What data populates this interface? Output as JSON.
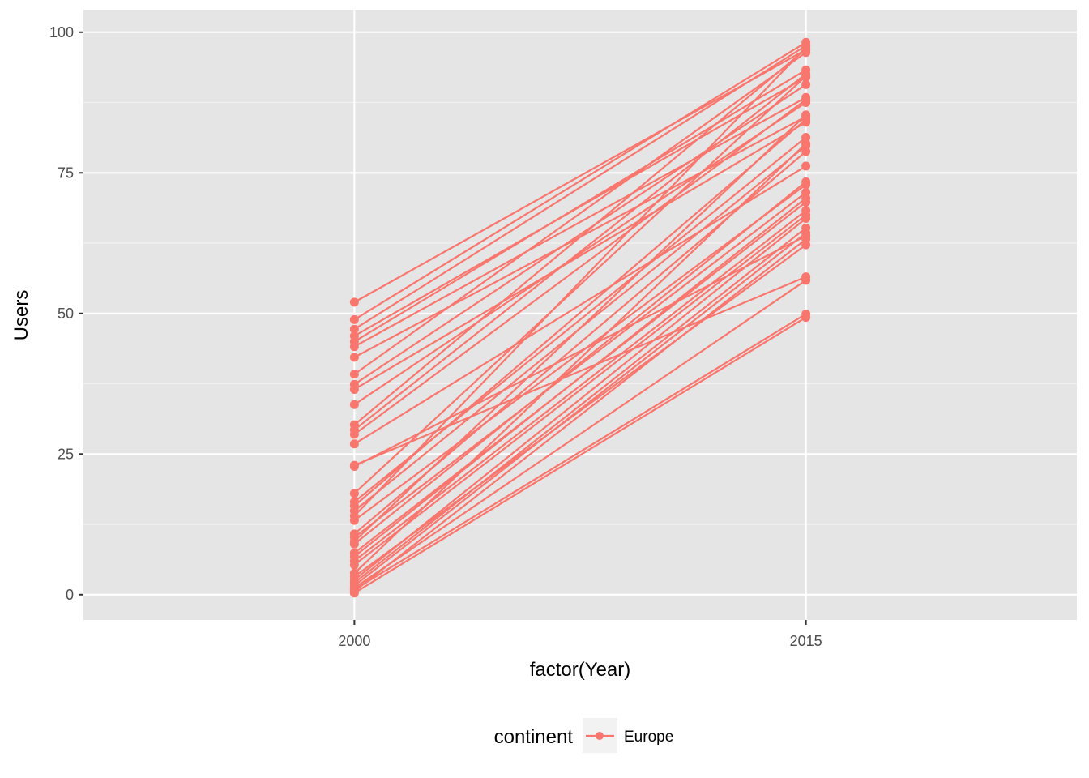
{
  "chart_data": {
    "type": "line",
    "xlabel": "factor(Year)",
    "ylabel": "Users",
    "categories": [
      "2000",
      "2015"
    ],
    "ylim": [
      -4.5,
      104
    ],
    "y_ticks": [
      0,
      25,
      50,
      75,
      100
    ],
    "grid": true,
    "legend": {
      "title": "continent",
      "position": "bottom",
      "entries": [
        {
          "label": "Europe",
          "color": "#F8766D"
        }
      ]
    },
    "series_color": "#F8766D",
    "pairs": [
      [
        52.0,
        96.9
      ],
      [
        48.9,
        98.2
      ],
      [
        47.2,
        97.6
      ],
      [
        46.0,
        92.0
      ],
      [
        45.0,
        93.3
      ],
      [
        44.1,
        88.4
      ],
      [
        42.2,
        85.0
      ],
      [
        39.2,
        96.4
      ],
      [
        37.4,
        90.7
      ],
      [
        36.5,
        84.0
      ],
      [
        33.8,
        87.5
      ],
      [
        30.2,
        97.0
      ],
      [
        29.3,
        92.6
      ],
      [
        28.5,
        88.0
      ],
      [
        26.8,
        76.2
      ],
      [
        23.0,
        56.5
      ],
      [
        22.8,
        63.8
      ],
      [
        18.0,
        92.2
      ],
      [
        16.5,
        81.3
      ],
      [
        15.8,
        84.5
      ],
      [
        14.9,
        79.8
      ],
      [
        14.0,
        97.3
      ],
      [
        13.2,
        72.9
      ],
      [
        10.8,
        78.8
      ],
      [
        10.2,
        71.5
      ],
      [
        9.5,
        85.3
      ],
      [
        9.0,
        73.4
      ],
      [
        7.4,
        69.8
      ],
      [
        6.8,
        70.5
      ],
      [
        6.0,
        68.3
      ],
      [
        5.3,
        67.5
      ],
      [
        3.8,
        80.2
      ],
      [
        3.2,
        62.2
      ],
      [
        2.6,
        66.9
      ],
      [
        2.1,
        65.2
      ],
      [
        1.6,
        64.3
      ],
      [
        1.2,
        55.9
      ],
      [
        0.9,
        49.9
      ],
      [
        0.6,
        63.2
      ],
      [
        0.3,
        49.3
      ]
    ]
  }
}
